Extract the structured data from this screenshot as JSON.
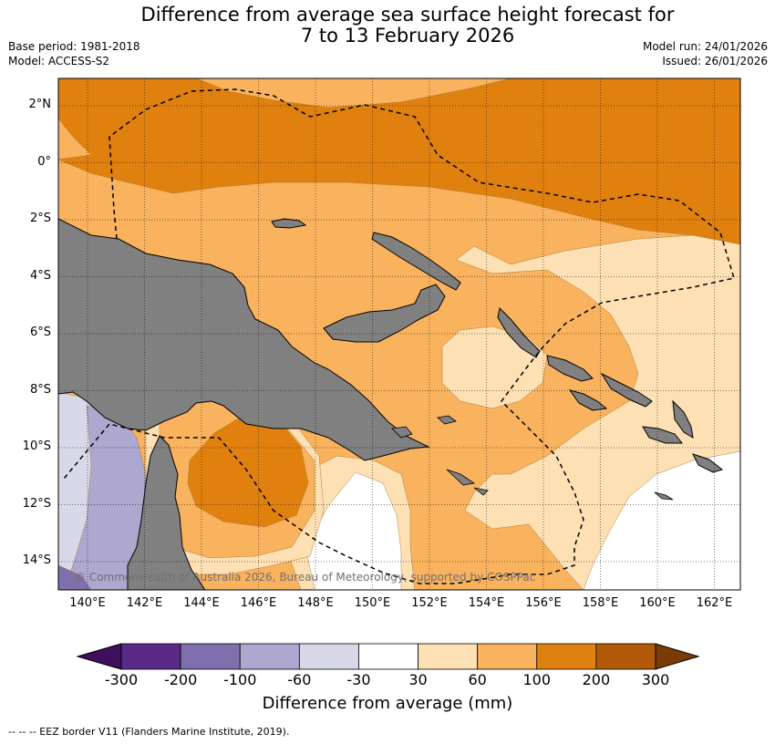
{
  "title_line1": "Difference from average sea surface height forecast for",
  "title_line2": "7 to 13 February 2026",
  "base_period": "Base period: 1981-2018",
  "model": "Model: ACCESS-S2",
  "model_run": "Model run: 24/01/2026",
  "issued": "Issued: 26/01/2026",
  "copyright": "© Commonwealth of Australia 2026, Bureau of Meteorology, supported by COSPPac",
  "lat_labels": [
    "2°N",
    "0°",
    "2°S",
    "4°S",
    "6°S",
    "8°S",
    "10°S",
    "12°S",
    "14°S"
  ],
  "lon_labels": [
    "140°E",
    "142°E",
    "144°E",
    "146°E",
    "148°E",
    "150°E",
    "152°E",
    "154°E",
    "156°E",
    "158°E",
    "160°E",
    "162°E"
  ],
  "colorbar": {
    "title": "Difference from average (mm)",
    "tick_labels": [
      "-300",
      "-200",
      "-100",
      "-60",
      "-30",
      "30",
      "60",
      "100",
      "200",
      "300"
    ],
    "colors": [
      "#3f0f5c",
      "#5a2a8a",
      "#7f70ad",
      "#aea7cf",
      "#d8d8e8",
      "#ffffff",
      "#fde0b4",
      "#f9b25e",
      "#e0800f",
      "#b05a08",
      "#7b3b04"
    ]
  },
  "footnote": "--  --  -- EEZ border V11 (Flanders Marine Institute, 2019)."
}
